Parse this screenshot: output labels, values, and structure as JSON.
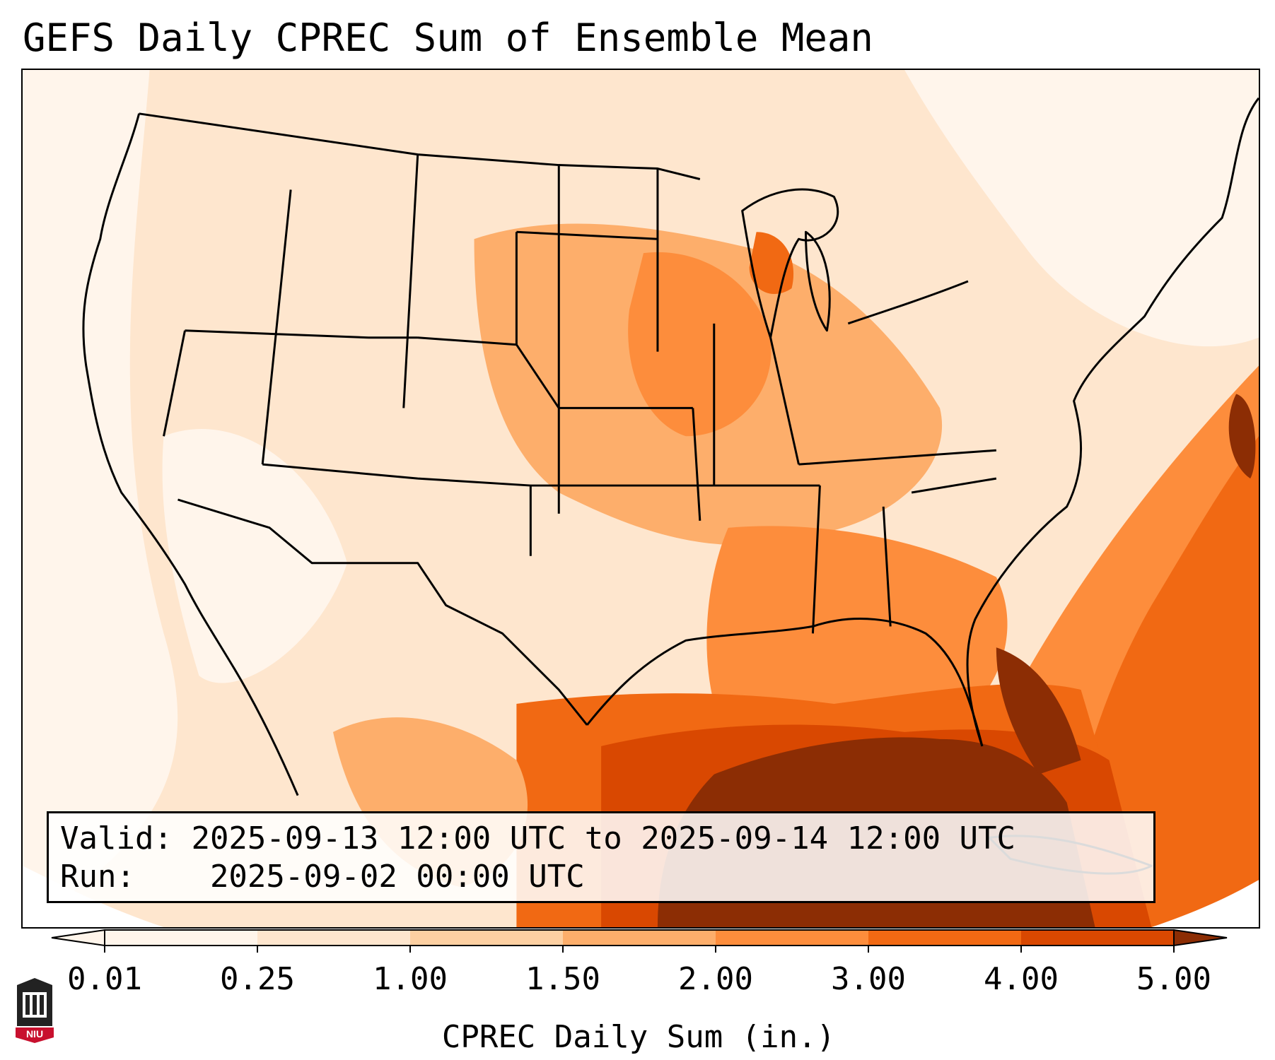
{
  "title": "GEFS Daily CPREC Sum of Ensemble Mean",
  "info": {
    "valid_label": "Valid:",
    "valid_value": "2025-09-13 12:00 UTC to 2025-09-14 12:00 UTC",
    "run_label": "Run:",
    "run_value": "2025-09-02 00:00 UTC"
  },
  "colorbar": {
    "label": "CPREC Daily Sum (in.)",
    "ticks": [
      "0.01",
      "0.25",
      "1.00",
      "1.50",
      "2.00",
      "3.00",
      "4.00",
      "5.00"
    ],
    "colors": [
      "#fff5eb",
      "#fee6ce",
      "#fdd0a2",
      "#fdae6b",
      "#fd8d3c",
      "#f16913",
      "#d94801",
      "#8c2d04"
    ],
    "extend": "both"
  },
  "logo": {
    "text": "NIU",
    "color": "#c8102e"
  },
  "map": {
    "region": "CONUS",
    "field": "CPREC daily sum",
    "max_zone": "Gulf of Mexico / Southeast coast"
  }
}
